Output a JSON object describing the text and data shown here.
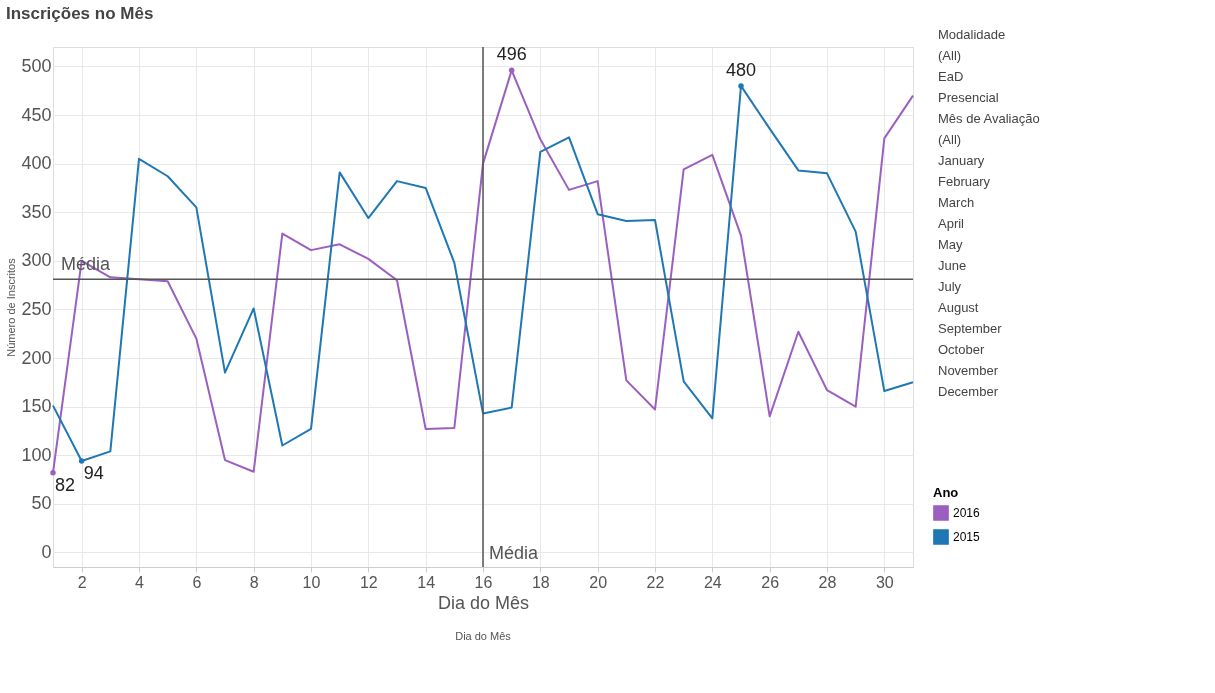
{
  "chart_data": {
    "type": "line",
    "title": "Inscrições no Mês",
    "xlabel": "Dia do Mês",
    "ylabel": "Número de Inscritos",
    "legend_title": "Ano",
    "x": [
      1,
      2,
      3,
      4,
      5,
      6,
      7,
      8,
      9,
      10,
      11,
      12,
      13,
      14,
      15,
      16,
      17,
      18,
      19,
      20,
      21,
      22,
      23,
      24,
      25,
      26,
      27,
      28,
      29,
      30,
      31
    ],
    "series": [
      {
        "name": "2016",
        "color": "#9b5fc0",
        "values": [
          82,
          300,
          283,
          281,
          279,
          220,
          95,
          83,
          328,
          311,
          317,
          302,
          280,
          127,
          128,
          400,
          496,
          425,
          373,
          382,
          177,
          147,
          394,
          409,
          326,
          140,
          227,
          167,
          150,
          426,
          470
        ],
        "value_labels": [
          "82",
          null,
          null,
          null,
          null,
          null,
          null,
          null,
          null,
          null,
          null,
          null,
          null,
          null,
          null,
          null,
          "496",
          null,
          null,
          null,
          null,
          null,
          null,
          null,
          null,
          null,
          null,
          null,
          null,
          null,
          null
        ]
      },
      {
        "name": "2015",
        "color": "#1f77b4",
        "values": [
          151,
          94,
          104,
          405,
          387,
          355,
          185,
          251,
          110,
          127,
          391,
          344,
          382,
          375,
          298,
          143,
          149,
          412,
          427,
          348,
          341,
          342,
          176,
          138,
          480,
          436,
          393,
          390,
          330,
          166,
          175
        ],
        "value_labels": [
          null,
          "94",
          null,
          null,
          null,
          null,
          null,
          null,
          null,
          null,
          null,
          null,
          null,
          null,
          null,
          null,
          null,
          null,
          null,
          null,
          null,
          null,
          null,
          null,
          "480",
          null,
          null,
          null,
          null,
          null,
          null
        ]
      }
    ],
    "xlim": [
      1,
      31
    ],
    "xticks": [
      2,
      4,
      6,
      8,
      10,
      12,
      14,
      16,
      18,
      20,
      22,
      24,
      26,
      28,
      30
    ],
    "ylim": [
      -15,
      520
    ],
    "yticks": [
      0,
      50,
      100,
      150,
      200,
      250,
      300,
      350,
      400,
      450,
      500
    ],
    "ref_lines": [
      {
        "axis": "y",
        "value": 281,
        "label": "Média",
        "color": "#555555"
      },
      {
        "axis": "x",
        "value": 16,
        "label": "Média",
        "color": "#555555"
      }
    ],
    "annotations": [
      "Dia do Mês",
      "Modalidade",
      "(All)",
      "EaD",
      "Presencial",
      "Mês de Avaliação",
      "(All)",
      "January",
      "February",
      "March",
      "April",
      "May",
      "June",
      "July",
      "August",
      "September",
      "October",
      "November",
      "December"
    ],
    "grid": true,
    "legend": "right",
    "marker": "none",
    "line_style": "solid"
  }
}
